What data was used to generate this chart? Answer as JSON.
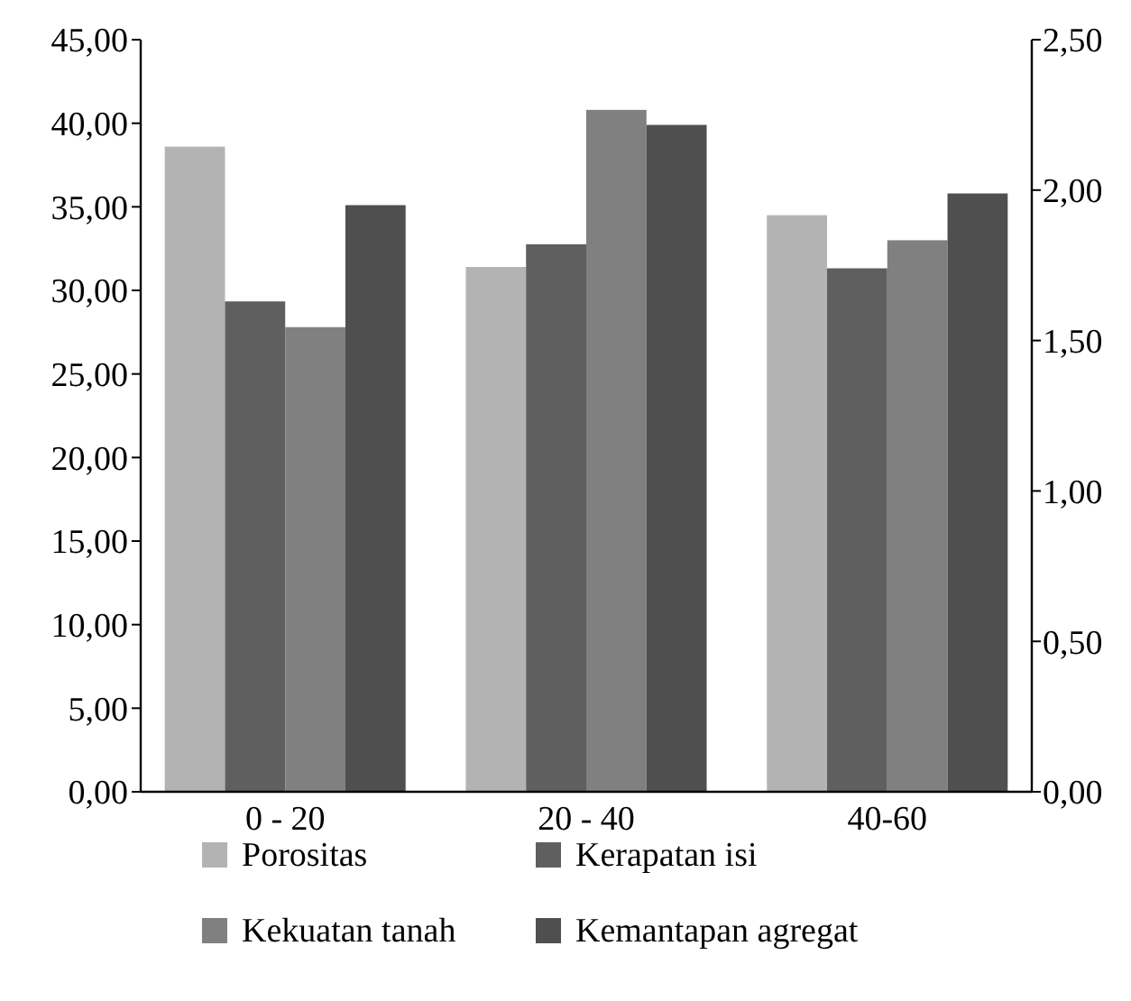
{
  "chart_data": {
    "type": "bar",
    "categories": [
      "0 - 20",
      "20 - 40",
      "40-60"
    ],
    "series": [
      {
        "name": "Porositas",
        "color": "#b3b3b3",
        "values": [
          38.6,
          31.4,
          34.5
        ]
      },
      {
        "name": "Kerapatan isi",
        "color": "#5f5f5f",
        "values": [
          1.63,
          1.82,
          1.74
        ],
        "axis": "y2"
      },
      {
        "name": "Kekuatan tanah",
        "color": "#808080",
        "values": [
          27.8,
          40.8,
          33.0
        ]
      },
      {
        "name": "Kemantapan agregat",
        "color": "#4f4f4f",
        "values": [
          35.1,
          39.9,
          35.8
        ]
      }
    ],
    "ylim": [
      0,
      45
    ],
    "yticks": [
      {
        "value": 0,
        "label": "0,00"
      },
      {
        "value": 5,
        "label": "5,00"
      },
      {
        "value": 10,
        "label": "10,00"
      },
      {
        "value": 15,
        "label": "15,00"
      },
      {
        "value": 20,
        "label": "20,00"
      },
      {
        "value": 25,
        "label": "25,00"
      },
      {
        "value": 30,
        "label": "30,00"
      },
      {
        "value": 35,
        "label": "35,00"
      },
      {
        "value": 40,
        "label": "40,00"
      },
      {
        "value": 45,
        "label": "45,00"
      }
    ],
    "y2lim": [
      0,
      2.5
    ],
    "y2ticks": [
      {
        "value": 0,
        "label": "0,00"
      },
      {
        "value": 0.5,
        "label": "0,50"
      },
      {
        "value": 1,
        "label": "1,00"
      },
      {
        "value": 1.5,
        "label": "1,50"
      },
      {
        "value": 2,
        "label": "2,00"
      },
      {
        "value": 2.5,
        "label": "2,50"
      }
    ],
    "legend": "bottom",
    "grid": false
  }
}
